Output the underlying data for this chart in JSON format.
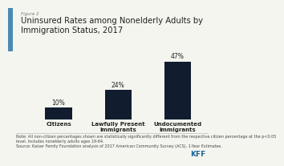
{
  "title_line1": "Uninsured Rates among Nonelderly Adults by",
  "title_line2": "Immigration Status, 2017",
  "figure_label": "Figure 2",
  "categories": [
    "Citizens",
    "Lawfully Present\nImmigrants",
    "Undocumented\nImmigrants"
  ],
  "values": [
    10,
    24,
    47
  ],
  "bar_color": "#111d2e",
  "value_labels": [
    "10%",
    "24%",
    "47%"
  ],
  "note_text": "Note: All non-citizen percentages shown are statistically significantly different from the respective citizen percentage at the p<0.05\nlevel. Includes nonelderly adults ages 19-64.\nSource: Kaiser Family Foundation analysis of 2017 American Community Survey (ACS), 1-Year Estimates.",
  "background_color": "#f5f5f0",
  "title_color": "#222222",
  "label_fontsize": 5.0,
  "title_fontsize": 7.2,
  "bar_label_fontsize": 5.5,
  "note_fontsize": 3.5,
  "ylim": [
    0,
    55
  ],
  "accent_color": "#4a8ab5",
  "kff_blue": "#1a6496",
  "kff_green": "#5ba55b"
}
